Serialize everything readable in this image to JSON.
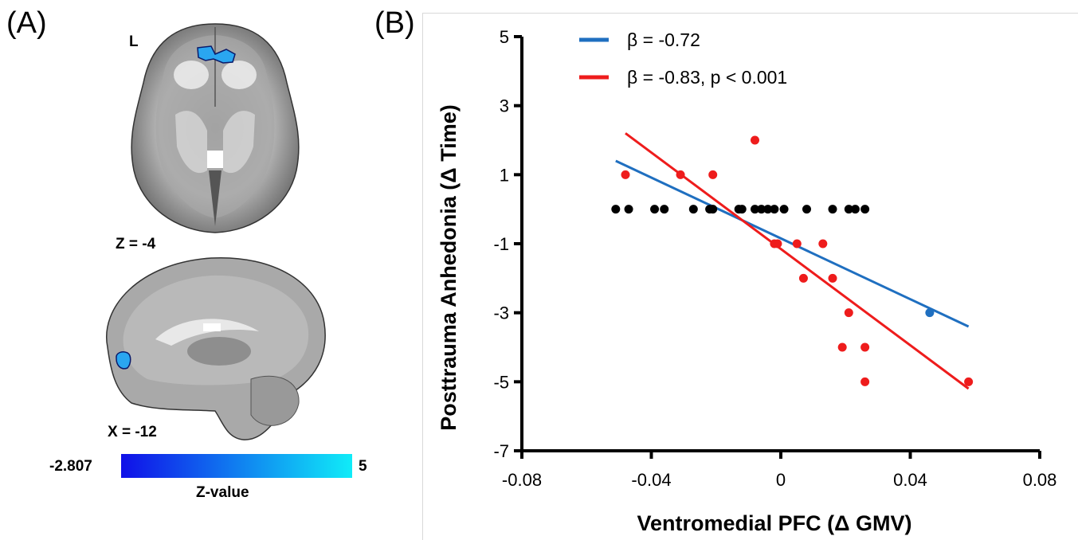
{
  "panel_a": {
    "label": "(A)",
    "axial_side_label": "L",
    "axial_slice_label": "Z = -4",
    "sagittal_slice_label": "X = -12",
    "colorbar": {
      "min_label": "-2.807",
      "max_label": "5",
      "title": "Z-value",
      "color_low": "#1010e8",
      "color_high": "#10ecf8"
    }
  },
  "panel_b": {
    "label": "(B)"
  },
  "chart_data": {
    "type": "scatter",
    "xlabel": "Ventromedial  PFC (Δ GMV)",
    "ylabel": "Posttrauma Anhedonia (Δ Time)",
    "xlim": [
      -0.08,
      0.08
    ],
    "ylim": [
      -7,
      5
    ],
    "xticks": [
      -0.08,
      -0.04,
      0,
      0.04,
      0.08
    ],
    "xtick_labels": [
      "-0.08",
      "-0.04",
      "0",
      "0.04",
      "0.08"
    ],
    "yticks": [
      5,
      3,
      1,
      -1,
      -3,
      -5,
      -7
    ],
    "ytick_labels": [
      "5",
      "3",
      "1",
      "-1",
      "-3",
      "-5",
      "-7"
    ],
    "legend_position": "top-left",
    "series": [
      {
        "color": "#000000",
        "points": [
          [
            -0.051,
            0
          ],
          [
            -0.047,
            0
          ],
          [
            -0.039,
            0
          ],
          [
            -0.036,
            0
          ],
          [
            -0.027,
            0
          ],
          [
            -0.022,
            0
          ],
          [
            -0.021,
            0
          ],
          [
            -0.013,
            0
          ],
          [
            -0.012,
            0
          ],
          [
            -0.008,
            0
          ],
          [
            -0.006,
            0
          ],
          [
            -0.004,
            0
          ],
          [
            -0.002,
            0
          ],
          [
            0.001,
            0
          ],
          [
            0.008,
            0
          ],
          [
            0.016,
            0
          ],
          [
            0.021,
            0
          ],
          [
            0.023,
            0
          ],
          [
            0.026,
            0
          ]
        ]
      },
      {
        "color": "#ee1c1c",
        "points": [
          [
            -0.048,
            1
          ],
          [
            -0.031,
            1
          ],
          [
            -0.021,
            1
          ],
          [
            -0.008,
            2
          ],
          [
            -0.002,
            -1
          ],
          [
            -0.001,
            -1
          ],
          [
            0.005,
            -1
          ],
          [
            0.007,
            -2
          ],
          [
            0.013,
            -1
          ],
          [
            0.016,
            -2
          ],
          [
            0.019,
            -4
          ],
          [
            0.021,
            -3
          ],
          [
            0.026,
            -4
          ],
          [
            0.026,
            -5
          ],
          [
            0.058,
            -5
          ]
        ]
      },
      {
        "color": "#1f6fc0",
        "points": [
          [
            0.046,
            -3
          ]
        ]
      }
    ],
    "lines": [
      {
        "legend": "β = -0.72",
        "color": "#1f6fc0",
        "x": [
          -0.051,
          0.058
        ],
        "y": [
          1.4,
          -3.4
        ]
      },
      {
        "legend": "β = -0.83, p < 0.001",
        "color": "#ee1c1c",
        "x": [
          -0.048,
          0.058
        ],
        "y": [
          2.2,
          -5.2
        ]
      }
    ]
  }
}
